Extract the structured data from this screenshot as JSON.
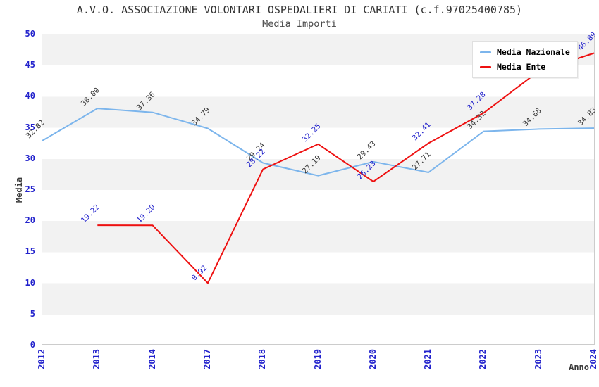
{
  "header": {
    "title": "A.V.O. ASSOCIAZIONE VOLONTARI OSPEDALIERI DI CARIATI (c.f.97025400785)",
    "subtitle": "Media Importi"
  },
  "axes": {
    "y_title": "Media",
    "x_title": "Anno",
    "y_ticks": [
      0,
      5,
      10,
      15,
      20,
      25,
      30,
      35,
      40,
      45,
      50
    ]
  },
  "legend": {
    "items": [
      {
        "label": "Media Nazionale",
        "color": "#7cb5ec"
      },
      {
        "label": "Media Ente",
        "color": "#ee1111"
      }
    ]
  },
  "colors": {
    "national_line": "#7cb5ec",
    "entity_line": "#ee1111",
    "national_label": "#3a3a3a",
    "entity_label": "#2222cc",
    "axis_tick": "#2222cc",
    "band": "#f2f2f2",
    "plot_border": "#cccccc"
  },
  "chart_data": {
    "type": "line",
    "title": "A.V.O. ASSOCIAZIONE VOLONTARI OSPEDALIERI DI CARIATI (c.f.97025400785)",
    "subtitle": "Media Importi",
    "xlabel": "Anno",
    "ylabel": "Media",
    "ylim": [
      0,
      50
    ],
    "y_tick_step": 5,
    "grid": "alternating-horizontal-bands",
    "legend_position": "top-right",
    "categories": [
      "2012",
      "2013",
      "2014",
      "2017",
      "2018",
      "2019",
      "2020",
      "2021",
      "2022",
      "2023",
      "2024"
    ],
    "series": [
      {
        "name": "Media Nazionale",
        "color": "#7cb5ec",
        "label_color": "#3a3a3a",
        "values": [
          32.82,
          38.0,
          37.36,
          34.79,
          29.24,
          27.19,
          29.43,
          27.71,
          34.32,
          34.68,
          34.83
        ],
        "labels": [
          "32.82",
          "38.00",
          "37.36",
          "34.79",
          "29.24",
          "27.19",
          "29.43",
          "27.71",
          "34.32",
          "34.68",
          "34.83"
        ]
      },
      {
        "name": "Media Ente",
        "color": "#ee1111",
        "label_color": "#2222cc",
        "values": [
          null,
          19.22,
          19.2,
          9.92,
          28.22,
          32.25,
          26.23,
          32.41,
          37.28,
          44.0,
          46.89
        ],
        "labels": [
          null,
          "19.22",
          "19.20",
          "9.92",
          "28.22",
          "32.25",
          "26.23",
          "32.41",
          "37.28",
          null,
          "46.89"
        ]
      }
    ]
  }
}
